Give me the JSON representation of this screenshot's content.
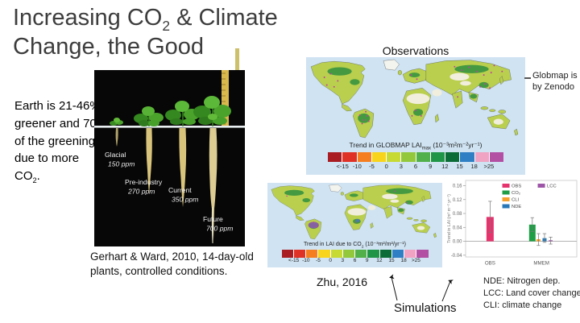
{
  "slide_title": {
    "pre": "Increasing CO",
    "sub": "2",
    "post": " & Climate Change, the Good"
  },
  "left_note": {
    "pre": "Earth is 21-46% greener and 70% of the greening is due to more CO",
    "sub": "2",
    "post": "."
  },
  "plant_figure": {
    "labels": [
      {
        "name": "Glacial",
        "ppm": "150 ppm"
      },
      {
        "name": "Pre-industry",
        "ppm": "270 ppm"
      },
      {
        "name": "Current",
        "ppm": "350 ppm"
      },
      {
        "name": "Future",
        "ppm": "700 ppm"
      }
    ],
    "caption": "Gerhart & Ward, 2010, 14-day-old plants, controlled conditions."
  },
  "observations": {
    "heading": "Observations",
    "map_label": {
      "pre": "Trend in GLOBMAP LAI",
      "sub": "max",
      "post": " (10⁻³m²m⁻²yr⁻¹)"
    },
    "note_line1": "Globmap is",
    "note_line2": "by Zenodo"
  },
  "simulations": {
    "label": "Simulations",
    "citation": "Zhu, 2016",
    "map_label": {
      "pre": "Trend in LAI due to CO",
      "sub": "2",
      "post": " (10⁻³m²/m²/yr⁻¹)"
    }
  },
  "colorbar": {
    "ticks": [
      "<-15",
      "-10",
      "-5",
      "0",
      "3",
      "6",
      "9",
      "12",
      "15",
      "18",
      ">25"
    ],
    "colors": [
      "#a81c22",
      "#e03127",
      "#f57e20",
      "#f8d41c",
      "#c7da33",
      "#93c83d",
      "#52b04a",
      "#1f9547",
      "#0c6c37",
      "#2f7fc5",
      "#f0a3c3",
      "#b350a4"
    ]
  },
  "abbreviations": [
    "NDE: Nitrogen dep.",
    "LCC: Land cover change",
    "CLI: climate change"
  ],
  "map_colors": {
    "ocean": "#cfe3f2",
    "land": "#b9cf4d",
    "forest": "#2f8f3f",
    "desert": "#f1eedd",
    "ice": "#f4f4ee",
    "stipple": "#c23fa3",
    "lcc_patch": "#8e5bad",
    "coast": "#55595c"
  },
  "chart_data": {
    "type": "bar",
    "title": "",
    "xlabel": "",
    "ylabel": "Trend in LAI (m² m⁻² yr⁻¹)",
    "ylim": [
      -0.045,
      0.175
    ],
    "yticks": [
      "0.16",
      "0.12",
      "0.08",
      "0.04",
      "0.00",
      "-0.04"
    ],
    "xlabels": [
      "OBS",
      "MMEM"
    ],
    "legend": [
      {
        "label": "OBS",
        "color": "#e5336e"
      },
      {
        "label": "CO₂",
        "color": "#1f9e45"
      },
      {
        "label": "CLI",
        "color": "#f5a02c"
      },
      {
        "label": "NDE",
        "color": "#2878b8"
      },
      {
        "label": "LCC",
        "color": "#9d55a8"
      }
    ],
    "bars": [
      {
        "label": "OBS",
        "group": "OBS",
        "color": "#e5336e",
        "value": 0.07,
        "err": [
          0.025,
          0.115
        ]
      },
      {
        "label": "CO₂",
        "group": "MMEM",
        "color": "#1f9e45",
        "value": 0.048,
        "err": [
          0.028,
          0.068
        ]
      },
      {
        "label": "CLI",
        "group": "MMEM",
        "color": "#f5a02c",
        "value": 0.006,
        "err": [
          -0.012,
          0.022
        ]
      },
      {
        "label": "NDE",
        "group": "MMEM",
        "color": "#2878b8",
        "value": 0.009,
        "err": [
          -0.003,
          0.022
        ]
      },
      {
        "label": "LCC",
        "group": "MMEM",
        "color": "#9d55a8",
        "value": 0.003,
        "err": [
          -0.008,
          0.012
        ]
      }
    ]
  }
}
